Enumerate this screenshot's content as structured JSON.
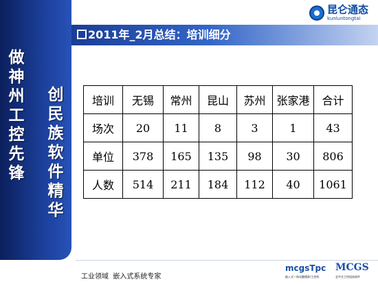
{
  "logo": {
    "cn": "昆仑通态",
    "en": "kunluntongtai"
  },
  "slide": {
    "title": "2011年_2月总结：培训细分"
  },
  "sidebar": {
    "slogan1": "做神州工控先锋",
    "slogan2": "创民族软件精华"
  },
  "table": {
    "header": [
      "培训",
      "无锡",
      "常州",
      "昆山",
      "苏州",
      "张家港",
      "合计"
    ],
    "rows": [
      [
        "场次",
        "20",
        "11",
        "8",
        "3",
        "1",
        "43"
      ],
      [
        "单位",
        "378",
        "165",
        "135",
        "98",
        "30",
        "806"
      ],
      [
        "人数",
        "514",
        "211",
        "184",
        "112",
        "40",
        "1061"
      ]
    ]
  },
  "footer": {
    "tagline": "工业领域  嵌入式系统专家",
    "brand1": "mcgsTpc",
    "brand1_sub": "嵌入式一体化触摸屏/工控机",
    "brand2": "MCGS",
    "brand2_sub": "全中文工控组态软件"
  },
  "colors": {
    "sidebar": "#1a3d96",
    "title_band": "#3466c8",
    "logo": "#0d4aa6"
  }
}
